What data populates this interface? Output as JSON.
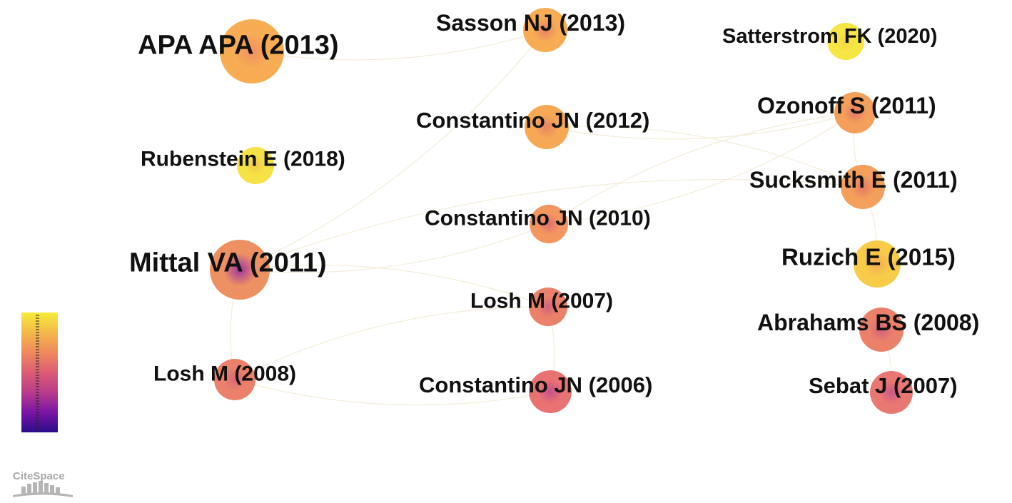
{
  "network": {
    "nodes": [
      {
        "id": "apa2013",
        "label": "APA APA (2013)",
        "year": 2013,
        "color": "#f7a84a",
        "core": "#f08a5a"
      },
      {
        "id": "sasson2013",
        "label": "Sasson NJ (2013)",
        "year": 2013,
        "color": "#f7a84a",
        "core": "#e8785e"
      },
      {
        "id": "satterstrom2020",
        "label": "Satterstrom FK (2020)",
        "year": 2020,
        "color": "#f5e43a",
        "core": "#f2d43c"
      },
      {
        "id": "constantino2012",
        "label": "Constantino JN (2012)",
        "year": 2012,
        "color": "#f6a44c",
        "core": "#ea7c5c"
      },
      {
        "id": "ozonoff2011",
        "label": "Ozonoff S (2011)",
        "year": 2011,
        "color": "#f39a52",
        "core": "#e27060"
      },
      {
        "id": "rubenstein2018",
        "label": "Rubenstein E (2018)",
        "year": 2018,
        "color": "#f5e03c",
        "core": "#f0c840"
      },
      {
        "id": "sucksmith2011",
        "label": "Sucksmith E (2011)",
        "year": 2011,
        "color": "#f39a52",
        "core": "#e27060"
      },
      {
        "id": "constantino2010",
        "label": "Constantino JN (2010)",
        "year": 2010,
        "color": "#f29058",
        "core": "#dc6868"
      },
      {
        "id": "mittal2011",
        "label": "Mittal VA (2011)",
        "year": 2011,
        "color": "#ec8a5a",
        "core": "#9a28a0"
      },
      {
        "id": "ruzich2015",
        "label": "Ruzich E (2015)",
        "year": 2015,
        "color": "#f7c83e",
        "core": "#f4a848"
      },
      {
        "id": "losh2007",
        "label": "Losh M (2007)",
        "year": 2007,
        "color": "#ea7a62",
        "core": "#d05878"
      },
      {
        "id": "abrahams2008",
        "label": "Abrahams BS (2008)",
        "year": 2008,
        "color": "#ea7a62",
        "core": "#d05878"
      },
      {
        "id": "losh2008",
        "label": "Losh M (2008)",
        "year": 2008,
        "color": "#ea7a62",
        "core": "#d86070"
      },
      {
        "id": "constantino2006",
        "label": "Constantino JN (2006)",
        "year": 2006,
        "color": "#e86a6a",
        "core": "#c04888"
      },
      {
        "id": "sebat2007",
        "label": "Sebat J (2007)",
        "year": 2007,
        "color": "#e8706a",
        "core": "#c85080"
      }
    ],
    "links": [
      [
        "apa2013",
        "sasson2013"
      ],
      [
        "sasson2013",
        "mittal2011"
      ],
      [
        "constantino2012",
        "ozonoff2011"
      ],
      [
        "constantino2012",
        "sucksmith2011"
      ],
      [
        "constantino2010",
        "ozonoff2011"
      ],
      [
        "constantino2010",
        "mittal2011"
      ],
      [
        "ozonoff2011",
        "sucksmith2011"
      ],
      [
        "sucksmith2011",
        "ruzich2015"
      ],
      [
        "sucksmith2011",
        "mittal2011"
      ],
      [
        "mittal2011",
        "losh2007"
      ],
      [
        "mittal2011",
        "losh2008"
      ],
      [
        "losh2008",
        "losh2007"
      ],
      [
        "losh2008",
        "constantino2006"
      ],
      [
        "abrahams2008",
        "sebat2007"
      ],
      [
        "ozonoff2011",
        "constantino2010"
      ],
      [
        "losh2007",
        "constantino2006"
      ]
    ]
  },
  "legend": {
    "type": "color-scale",
    "colors": [
      "#f7ec3a",
      "#f4b84a",
      "#ee8a5c",
      "#dc5c74",
      "#b83c8c",
      "#7a14a4",
      "#2c0c8c"
    ]
  },
  "logo": {
    "text": "CiteSpace"
  }
}
